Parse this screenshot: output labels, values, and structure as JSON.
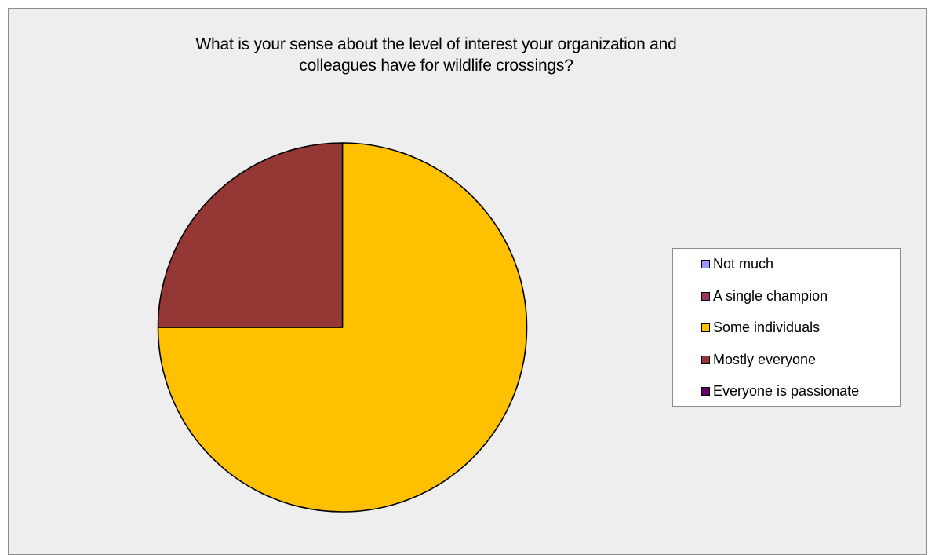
{
  "chart_data": {
    "type": "pie",
    "title": "What is your sense about the level of interest your organization and\ncolleagues have for wildlife crossings?",
    "categories": [
      "Not much",
      "A single champion",
      "Some individuals",
      "Mostly everyone",
      "Everyone is passionate"
    ],
    "values": [
      0,
      0,
      75,
      25,
      0
    ],
    "colors": [
      "#9999ff",
      "#993366",
      "#ffc000",
      "#953735",
      "#660066"
    ],
    "start_angle_deg": 0,
    "direction": "clockwise",
    "legend_position": "right",
    "grid": false
  }
}
